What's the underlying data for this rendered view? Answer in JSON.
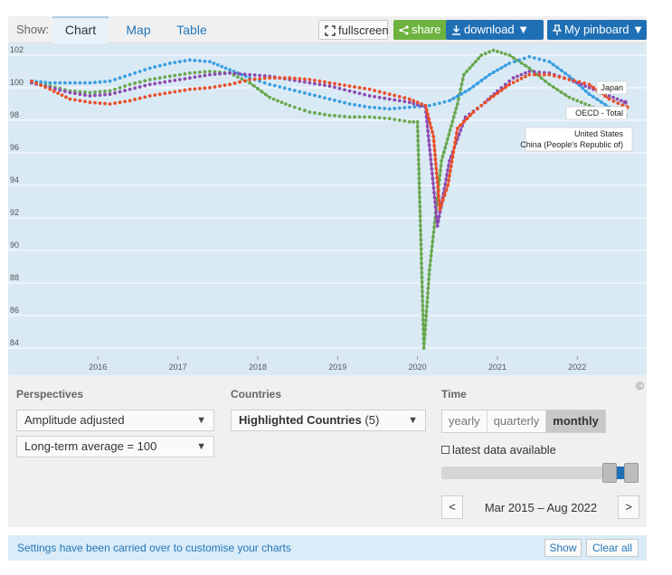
{
  "topbar": {
    "show_label": "Show:",
    "tabs": [
      {
        "label": "Chart",
        "active": true
      },
      {
        "label": "Map",
        "active": false
      },
      {
        "label": "Table",
        "active": false
      }
    ],
    "fullscreen_label": "fullscreen",
    "share_label": "share",
    "download_label": "download ▼",
    "pinboard_label": "My pinboard ▼",
    "share_color": "#6db33f",
    "primary_color": "#1f6fb5"
  },
  "chart_data": {
    "type": "line",
    "title": "",
    "xlabel": "",
    "ylabel": "",
    "ylim": [
      83.5,
      102.5
    ],
    "yticks": [
      84,
      86,
      88,
      90,
      92,
      94,
      96,
      98,
      100,
      102
    ],
    "xticks": [
      {
        "label": "2016",
        "value": 2016.0
      },
      {
        "label": "2017",
        "value": 2017.0
      },
      {
        "label": "2018",
        "value": 2018.0
      },
      {
        "label": "2019",
        "value": 2019.0
      },
      {
        "label": "2020",
        "value": 2020.0
      },
      {
        "label": "2021",
        "value": 2021.0
      },
      {
        "label": "2022",
        "value": 2022.0
      }
    ],
    "xlim": [
      2015.17,
      2022.71
    ],
    "grid": true,
    "end_markers": true,
    "series": [
      {
        "name": "China (People's Republic of)",
        "color": "#6aa84f",
        "points": [
          [
            2015.17,
            100.3
          ],
          [
            2015.4,
            100.1
          ],
          [
            2015.65,
            99.8
          ],
          [
            2015.9,
            99.7
          ],
          [
            2016.15,
            99.8
          ],
          [
            2016.4,
            100.2
          ],
          [
            2016.65,
            100.5
          ],
          [
            2016.9,
            100.7
          ],
          [
            2017.15,
            100.9
          ],
          [
            2017.4,
            101.0
          ],
          [
            2017.65,
            100.9
          ],
          [
            2017.9,
            100.3
          ],
          [
            2018.15,
            99.4
          ],
          [
            2018.4,
            98.9
          ],
          [
            2018.65,
            98.5
          ],
          [
            2018.9,
            98.3
          ],
          [
            2019.15,
            98.2
          ],
          [
            2019.4,
            98.2
          ],
          [
            2019.65,
            98.1
          ],
          [
            2019.9,
            97.9
          ],
          [
            2020.0,
            97.9
          ],
          [
            2020.08,
            84.0
          ],
          [
            2020.15,
            88.8
          ],
          [
            2020.3,
            95.5
          ],
          [
            2020.5,
            99.0
          ],
          [
            2020.58,
            100.8
          ],
          [
            2020.8,
            102.0
          ],
          [
            2020.95,
            102.3
          ],
          [
            2021.15,
            102.0
          ],
          [
            2021.4,
            101.2
          ],
          [
            2021.65,
            100.2
          ],
          [
            2021.9,
            99.4
          ],
          [
            2022.15,
            98.9
          ],
          [
            2022.4,
            98.4
          ],
          [
            2022.6,
            98.2
          ]
        ]
      },
      {
        "name": "United States",
        "color": "#3b9fe0",
        "points": [
          [
            2015.17,
            100.4
          ],
          [
            2015.4,
            100.3
          ],
          [
            2015.65,
            100.3
          ],
          [
            2015.9,
            100.3
          ],
          [
            2016.15,
            100.4
          ],
          [
            2016.4,
            100.8
          ],
          [
            2016.65,
            101.2
          ],
          [
            2016.9,
            101.5
          ],
          [
            2017.15,
            101.7
          ],
          [
            2017.4,
            101.6
          ],
          [
            2017.65,
            101.1
          ],
          [
            2017.9,
            100.6
          ],
          [
            2018.15,
            100.2
          ],
          [
            2018.4,
            99.9
          ],
          [
            2018.65,
            99.6
          ],
          [
            2018.9,
            99.3
          ],
          [
            2019.15,
            99.0
          ],
          [
            2019.4,
            98.8
          ],
          [
            2019.65,
            98.7
          ],
          [
            2019.9,
            98.8
          ],
          [
            2020.15,
            98.9
          ],
          [
            2020.4,
            99.2
          ],
          [
            2020.65,
            99.9
          ],
          [
            2020.9,
            100.8
          ],
          [
            2021.15,
            101.5
          ],
          [
            2021.4,
            101.9
          ],
          [
            2021.65,
            101.6
          ],
          [
            2021.9,
            100.7
          ],
          [
            2022.15,
            99.6
          ],
          [
            2022.4,
            98.8
          ],
          [
            2022.6,
            98.3
          ]
        ]
      },
      {
        "name": "OECD - Total",
        "color": "#8e4bb0",
        "points": [
          [
            2015.17,
            100.3
          ],
          [
            2015.4,
            100.0
          ],
          [
            2015.65,
            99.7
          ],
          [
            2015.9,
            99.5
          ],
          [
            2016.15,
            99.6
          ],
          [
            2016.4,
            99.9
          ],
          [
            2016.65,
            100.2
          ],
          [
            2016.9,
            100.4
          ],
          [
            2017.15,
            100.6
          ],
          [
            2017.4,
            100.8
          ],
          [
            2017.65,
            100.9
          ],
          [
            2017.9,
            100.8
          ],
          [
            2018.15,
            100.7
          ],
          [
            2018.4,
            100.5
          ],
          [
            2018.65,
            100.3
          ],
          [
            2018.9,
            100.1
          ],
          [
            2019.15,
            99.8
          ],
          [
            2019.4,
            99.5
          ],
          [
            2019.65,
            99.3
          ],
          [
            2019.9,
            99.1
          ],
          [
            2020.1,
            98.8
          ],
          [
            2020.25,
            91.5
          ],
          [
            2020.4,
            95.5
          ],
          [
            2020.6,
            98.2
          ],
          [
            2020.8,
            98.9
          ],
          [
            2021.0,
            99.8
          ],
          [
            2021.2,
            100.6
          ],
          [
            2021.4,
            101.0
          ],
          [
            2021.65,
            100.9
          ],
          [
            2021.9,
            100.5
          ],
          [
            2022.15,
            100.0
          ],
          [
            2022.4,
            99.5
          ],
          [
            2022.6,
            99.1
          ]
        ]
      },
      {
        "name": "Japan",
        "color": "#e8502a",
        "points": [
          [
            2015.17,
            100.4
          ],
          [
            2015.4,
            99.9
          ],
          [
            2015.65,
            99.3
          ],
          [
            2015.9,
            99.1
          ],
          [
            2016.15,
            99.0
          ],
          [
            2016.4,
            99.2
          ],
          [
            2016.65,
            99.5
          ],
          [
            2016.9,
            99.7
          ],
          [
            2017.15,
            99.9
          ],
          [
            2017.4,
            100.0
          ],
          [
            2017.65,
            100.2
          ],
          [
            2017.9,
            100.5
          ],
          [
            2018.15,
            100.6
          ],
          [
            2018.4,
            100.6
          ],
          [
            2018.65,
            100.5
          ],
          [
            2018.9,
            100.3
          ],
          [
            2019.15,
            100.1
          ],
          [
            2019.4,
            99.9
          ],
          [
            2019.65,
            99.6
          ],
          [
            2019.9,
            99.3
          ],
          [
            2020.1,
            98.9
          ],
          [
            2020.2,
            97.0
          ],
          [
            2020.28,
            92.5
          ],
          [
            2020.38,
            94.0
          ],
          [
            2020.5,
            97.5
          ],
          [
            2020.7,
            98.5
          ],
          [
            2020.9,
            99.3
          ],
          [
            2021.15,
            100.2
          ],
          [
            2021.4,
            100.8
          ],
          [
            2021.65,
            100.8
          ],
          [
            2021.9,
            100.5
          ],
          [
            2022.15,
            100.2
          ],
          [
            2022.4,
            99.3
          ],
          [
            2022.62,
            98.8
          ]
        ]
      }
    ],
    "annotations": [
      {
        "text": "Japan",
        "series": "Japan"
      },
      {
        "text": "OECD - Total",
        "series": "OECD - Total"
      },
      {
        "text": "United States",
        "series": "United States"
      },
      {
        "text": "China (People's Republic of)",
        "series": "China (People's Republic of)"
      }
    ]
  },
  "controls": {
    "copyright": "©",
    "perspectives": {
      "heading": "Perspectives",
      "amplitude": "Amplitude adjusted",
      "longterm": "Long-term average = 100"
    },
    "countries": {
      "heading": "Countries",
      "label": "Highlighted Countries",
      "count": "(5)"
    },
    "time": {
      "heading": "Time",
      "frequencies": [
        {
          "label": "yearly",
          "active": false
        },
        {
          "label": "quarterly",
          "active": false
        },
        {
          "label": "monthly",
          "active": true
        }
      ],
      "latest_label": "latest data available",
      "latest_checked": false,
      "slider_start": 0.88,
      "slider_end": 1.0,
      "range_label": "Mar 2015 – Aug 2022",
      "prev_label": "<",
      "next_label": ">"
    }
  },
  "notice": {
    "text": "Settings have been carried over to customise your charts",
    "show_label": "Show",
    "clear_label": "Clear all"
  }
}
